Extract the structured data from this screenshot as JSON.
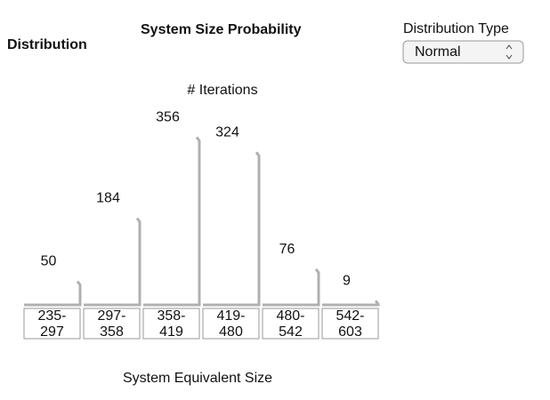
{
  "header": {
    "title": "System Size Probability",
    "left_label": "Distribution"
  },
  "controls": {
    "distribution_type_label": "Distribution Type",
    "distribution_type_value": "Normal"
  },
  "chart_data": {
    "type": "bar",
    "title": "# Iterations",
    "x_label": "System Equivalent Size",
    "categories": [
      "235-297",
      "297-358",
      "358-419",
      "419-480",
      "480-542",
      "542-603"
    ],
    "values": [
      50,
      184,
      356,
      324,
      76,
      9
    ],
    "color": "#b0b0b0"
  }
}
